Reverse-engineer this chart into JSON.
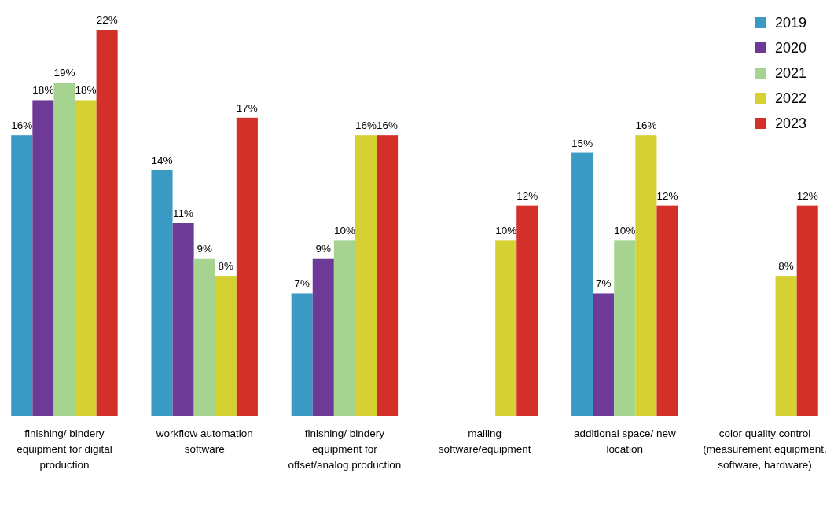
{
  "chart_data": {
    "type": "bar",
    "categories": [
      "finishing/ bindery equipment for digital production",
      "workflow automation software",
      "finishing/ bindery equipment for offset/analog production",
      "mailing software/equipment",
      "additional space/ new location",
      "color quality control (measurement equipment, software, hardware)"
    ],
    "series": [
      {
        "name": "2019",
        "color": "#3a9ac4",
        "values": [
          16,
          14,
          7,
          null,
          15,
          null
        ],
        "value_labels": [
          "16%",
          "14%",
          "7%",
          null,
          "15%",
          null
        ]
      },
      {
        "name": "2020",
        "color": "#6e3a97",
        "values": [
          18,
          11,
          9,
          null,
          7,
          null
        ],
        "value_labels": [
          "18%",
          "11%",
          "9%",
          null,
          "7%",
          null
        ]
      },
      {
        "name": "2021",
        "color": "#a7d391",
        "values": [
          19,
          9,
          10,
          null,
          10,
          null
        ],
        "value_labels": [
          "19%",
          "9%",
          "10%",
          null,
          "10%",
          null
        ]
      },
      {
        "name": "2022",
        "color": "#d5d132",
        "values": [
          18,
          8,
          16,
          10,
          16,
          8
        ],
        "value_labels": [
          "18%",
          "8%",
          "16%",
          "10%",
          "16%",
          "8%"
        ]
      },
      {
        "name": "2023",
        "color": "#d4302a",
        "values": [
          22,
          17,
          16,
          12,
          12,
          12
        ],
        "value_labels": [
          "22%",
          "17%",
          "16%",
          "12%",
          "12%",
          "12%"
        ]
      }
    ],
    "legend": "top right"
  }
}
